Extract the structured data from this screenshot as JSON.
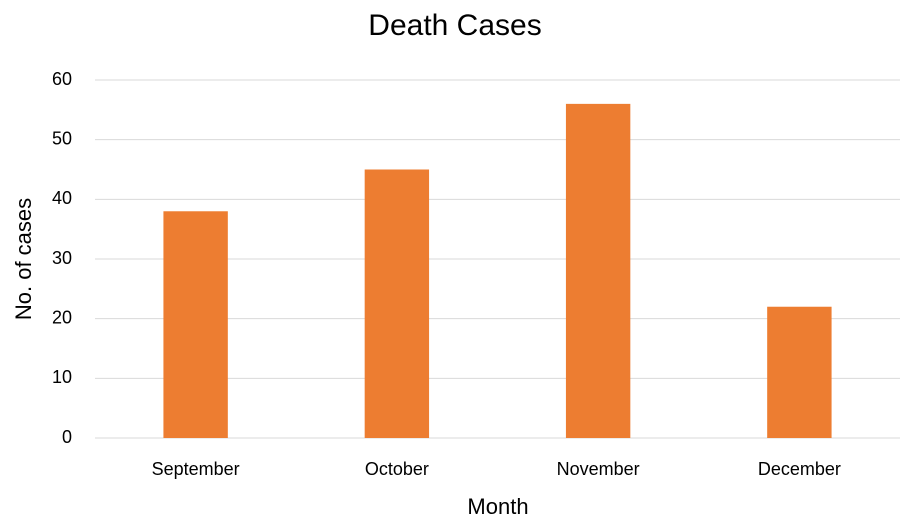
{
  "chart_data": {
    "type": "bar",
    "title": "Death Cases",
    "x_label": "Month",
    "y_label": "No. of cases",
    "categories": [
      "September",
      "October",
      "November",
      "December"
    ],
    "values": [
      38,
      45,
      56,
      22
    ],
    "color": "#ed7d31",
    "ylim": [
      0,
      60
    ],
    "yticks": [
      0,
      10,
      20,
      30,
      40,
      50,
      60
    ],
    "grid": true
  }
}
